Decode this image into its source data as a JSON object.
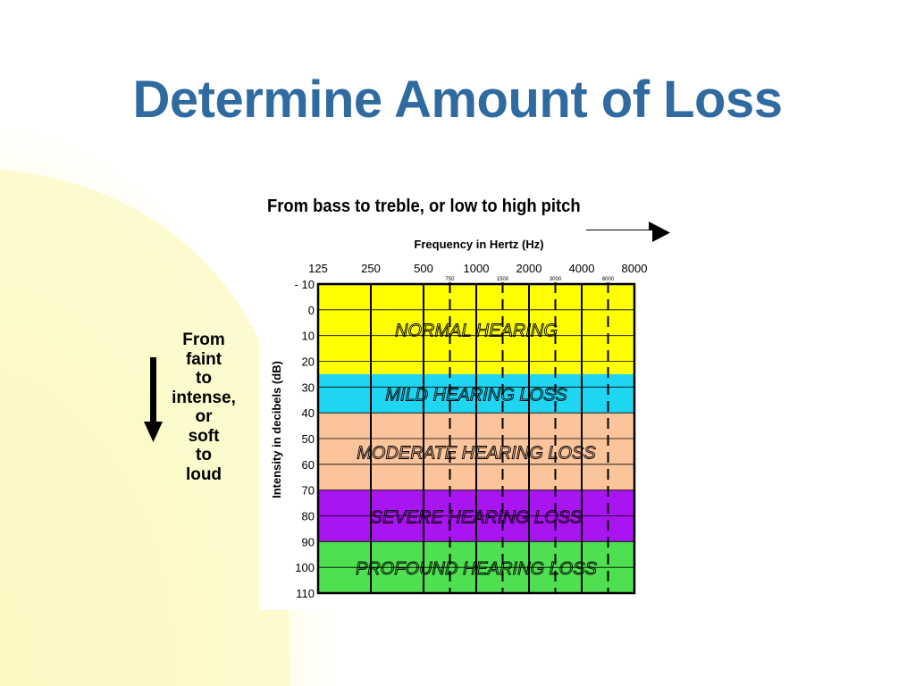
{
  "slide": {
    "title": "Determine Amount of Loss",
    "caption": "From bass to treble, or low to high pitch",
    "side_note_lines": [
      "From",
      "faint",
      "to",
      "intense,",
      "or",
      "soft",
      "to",
      "loud"
    ]
  },
  "chart_data": {
    "type": "audiogram",
    "x_axis_title": "Frequency in Hertz (Hz)",
    "y_axis_title": "Intensity in decibels (dB)",
    "frequencies": [
      "125",
      "250",
      "500",
      "1000",
      "2000",
      "4000",
      "8000"
    ],
    "half_octave_labels": [
      "750",
      "1500",
      "3000",
      "6000"
    ],
    "db_ticks": [
      "- 10",
      "0",
      "10",
      "20",
      "30",
      "40",
      "50",
      "60",
      "70",
      "80",
      "90",
      "100",
      "110"
    ],
    "ylim": [
      -10,
      110
    ],
    "bands": [
      {
        "label": "NORMAL HEARING",
        "from_db": -10,
        "to_db": 25,
        "color": "#ffff00"
      },
      {
        "label": "MILD HEARING LOSS",
        "from_db": 25,
        "to_db": 40,
        "color": "#1fd6f2"
      },
      {
        "label": "MODERATE HEARING LOSS",
        "from_db": 40,
        "to_db": 70,
        "color": "#fcc49a"
      },
      {
        "label": "SEVERE HEARING LOSS",
        "from_db": 70,
        "to_db": 90,
        "color": "#a915f0"
      },
      {
        "label": "PROFOUND HEARING LOSS",
        "from_db": 90,
        "to_db": 110,
        "color": "#4ee050"
      }
    ]
  },
  "colors": {
    "title": "#2f6aa0",
    "background_glow": "#fdf6b0"
  },
  "icons": {
    "right_arrow": "arrow-right-icon",
    "down_arrow": "arrow-down-icon"
  }
}
